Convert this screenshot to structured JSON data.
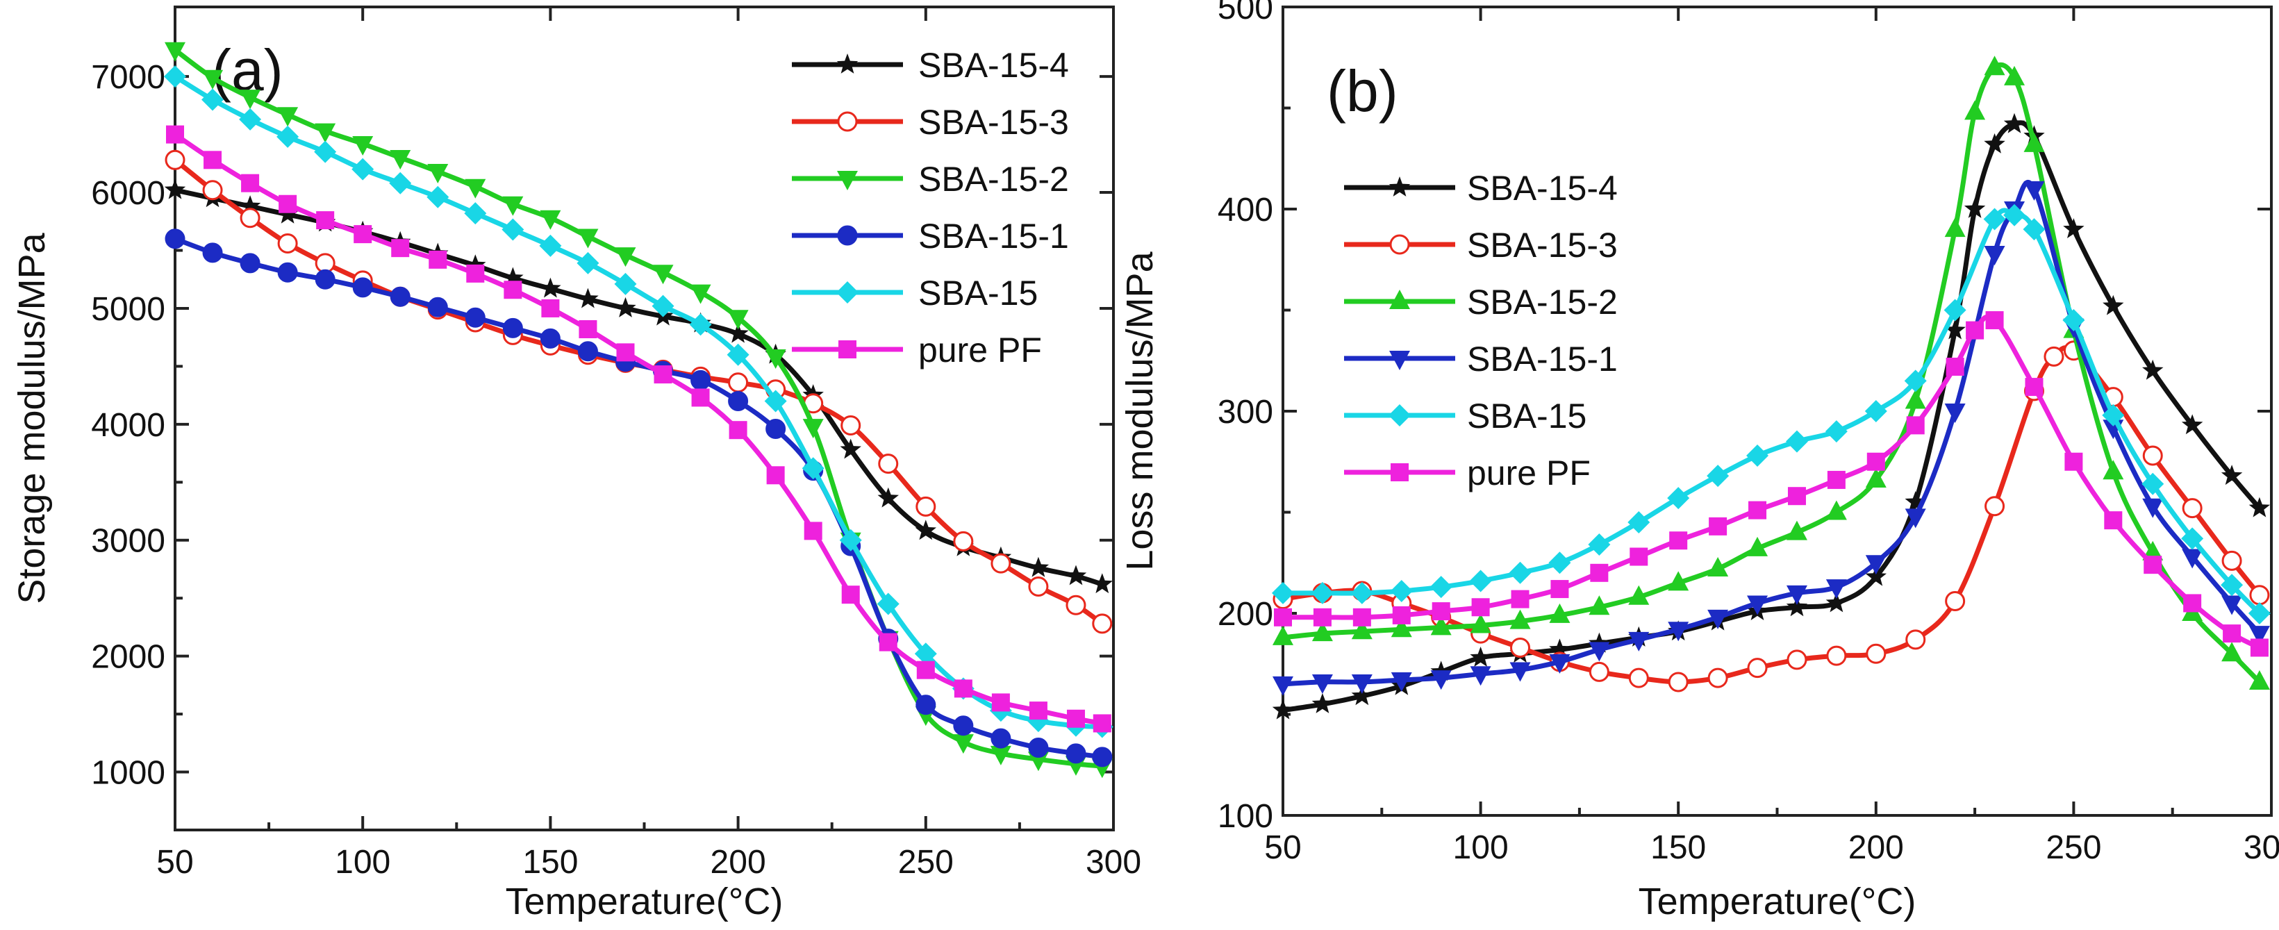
{
  "chart_data": [
    {
      "type": "line",
      "panel_label": "(a)",
      "xlabel": "Temperature(°C)",
      "ylabel": "Storage modulus/MPa",
      "xlim": [
        50,
        300
      ],
      "ylim": [
        500,
        7600
      ],
      "xticks": [
        "50",
        "100",
        "150",
        "200",
        "250",
        "300"
      ],
      "yticks": [
        "1000",
        "2000",
        "3000",
        "4000",
        "5000",
        "6000",
        "7000"
      ],
      "legend_position": "top-right",
      "series": [
        {
          "name": "SBA-15-4",
          "color": "#111111",
          "marker": "star",
          "x": [
            50,
            60,
            70,
            80,
            90,
            100,
            110,
            120,
            130,
            140,
            150,
            160,
            170,
            180,
            190,
            200,
            210,
            220,
            230,
            240,
            250,
            260,
            270,
            280,
            290,
            297
          ],
          "y": [
            6020,
            5950,
            5880,
            5810,
            5740,
            5660,
            5570,
            5470,
            5370,
            5260,
            5170,
            5080,
            5000,
            4930,
            4870,
            4780,
            4600,
            4250,
            3780,
            3360,
            3080,
            2940,
            2850,
            2760,
            2690,
            2620
          ]
        },
        {
          "name": "SBA-15-3",
          "color": "#e8281c",
          "marker": "circle-open",
          "x": [
            50,
            60,
            70,
            80,
            90,
            100,
            110,
            120,
            130,
            140,
            150,
            160,
            170,
            180,
            190,
            200,
            210,
            220,
            230,
            240,
            250,
            260,
            270,
            280,
            290,
            297
          ],
          "y": [
            6280,
            6020,
            5780,
            5560,
            5390,
            5240,
            5100,
            4990,
            4880,
            4770,
            4680,
            4600,
            4530,
            4470,
            4410,
            4360,
            4300,
            4180,
            3990,
            3660,
            3290,
            2990,
            2800,
            2600,
            2440,
            2280
          ]
        },
        {
          "name": "SBA-15-2",
          "color": "#22cc22",
          "marker": "triangle-down",
          "x": [
            50,
            60,
            70,
            80,
            90,
            100,
            110,
            120,
            130,
            140,
            150,
            160,
            170,
            180,
            190,
            200,
            210,
            220,
            230,
            240,
            250,
            260,
            270,
            280,
            290,
            297
          ],
          "y": [
            7230,
            6990,
            6820,
            6670,
            6530,
            6420,
            6300,
            6180,
            6050,
            5900,
            5780,
            5620,
            5460,
            5310,
            5140,
            4920,
            4580,
            3980,
            3000,
            2150,
            1500,
            1260,
            1160,
            1110,
            1070,
            1050
          ]
        },
        {
          "name": "SBA-15-1",
          "color": "#1c2bc4",
          "marker": "circle",
          "x": [
            50,
            60,
            70,
            80,
            90,
            100,
            110,
            120,
            130,
            140,
            150,
            160,
            170,
            180,
            190,
            200,
            210,
            220,
            230,
            240,
            250,
            260,
            270,
            280,
            290,
            297
          ],
          "y": [
            5600,
            5480,
            5390,
            5310,
            5250,
            5180,
            5100,
            5010,
            4920,
            4830,
            4740,
            4630,
            4540,
            4460,
            4380,
            4200,
            3960,
            3600,
            2950,
            2150,
            1580,
            1400,
            1290,
            1210,
            1160,
            1130
          ]
        },
        {
          "name": "SBA-15",
          "color": "#19d6e6",
          "marker": "diamond",
          "x": [
            50,
            60,
            70,
            80,
            90,
            100,
            110,
            120,
            130,
            140,
            150,
            160,
            170,
            180,
            190,
            200,
            210,
            220,
            230,
            240,
            250,
            260,
            270,
            280,
            290,
            297
          ],
          "y": [
            7000,
            6800,
            6630,
            6480,
            6350,
            6200,
            6080,
            5960,
            5820,
            5680,
            5540,
            5390,
            5210,
            5020,
            4860,
            4600,
            4200,
            3620,
            3000,
            2450,
            2020,
            1720,
            1530,
            1440,
            1400,
            1390
          ]
        },
        {
          "name": "pure PF",
          "color": "#ee22dd",
          "marker": "square",
          "x": [
            50,
            60,
            70,
            80,
            90,
            100,
            110,
            120,
            130,
            140,
            150,
            160,
            170,
            180,
            190,
            200,
            210,
            220,
            230,
            240,
            250,
            260,
            270,
            280,
            290,
            297
          ],
          "y": [
            6500,
            6280,
            6080,
            5900,
            5760,
            5640,
            5520,
            5420,
            5300,
            5160,
            5000,
            4820,
            4620,
            4430,
            4230,
            3950,
            3560,
            3080,
            2530,
            2120,
            1880,
            1720,
            1600,
            1530,
            1460,
            1420
          ]
        }
      ]
    },
    {
      "type": "line",
      "panel_label": "(b)",
      "xlabel": "Temperature(°C)",
      "ylabel": "Loss modulus/MPa",
      "xlim": [
        50,
        300
      ],
      "ylim": [
        100,
        500
      ],
      "xticks": [
        "50",
        "100",
        "150",
        "200",
        "250",
        "300"
      ],
      "yticks": [
        "100",
        "200",
        "300",
        "400",
        "500"
      ],
      "legend_position": "left",
      "series": [
        {
          "name": "SBA-15-4",
          "color": "#111111",
          "marker": "star",
          "x": [
            50,
            60,
            70,
            80,
            90,
            100,
            110,
            120,
            130,
            140,
            150,
            160,
            170,
            180,
            190,
            200,
            210,
            220,
            225,
            230,
            235,
            240,
            250,
            260,
            270,
            280,
            290,
            297
          ],
          "y": [
            152,
            155,
            159,
            164,
            171,
            178,
            180,
            182,
            185,
            188,
            191,
            196,
            201,
            203,
            205,
            218,
            255,
            340,
            400,
            432,
            442,
            436,
            390,
            352,
            320,
            293,
            268,
            252
          ]
        },
        {
          "name": "SBA-15-3",
          "color": "#e8281c",
          "marker": "circle-open",
          "x": [
            50,
            60,
            70,
            80,
            90,
            100,
            110,
            120,
            130,
            140,
            150,
            160,
            170,
            180,
            190,
            200,
            210,
            220,
            230,
            240,
            245,
            250,
            260,
            270,
            280,
            290,
            297
          ],
          "y": [
            207,
            210,
            211,
            205,
            198,
            190,
            183,
            176,
            171,
            168,
            166,
            168,
            173,
            177,
            179,
            180,
            187,
            206,
            253,
            310,
            327,
            330,
            307,
            278,
            252,
            226,
            209
          ]
        },
        {
          "name": "SBA-15-2",
          "color": "#22cc22",
          "marker": "triangle-up",
          "x": [
            50,
            60,
            70,
            80,
            90,
            100,
            110,
            120,
            130,
            140,
            150,
            160,
            170,
            180,
            190,
            200,
            210,
            220,
            225,
            230,
            235,
            240,
            250,
            260,
            270,
            280,
            290,
            297
          ],
          "y": [
            188,
            190,
            191,
            192,
            193,
            194,
            196,
            199,
            203,
            208,
            215,
            222,
            232,
            240,
            250,
            266,
            305,
            390,
            448,
            470,
            465,
            432,
            340,
            270,
            230,
            200,
            180,
            166
          ]
        },
        {
          "name": "SBA-15-1",
          "color": "#1c2bc4",
          "marker": "triangle-down",
          "x": [
            50,
            60,
            70,
            80,
            90,
            100,
            110,
            120,
            130,
            140,
            150,
            160,
            170,
            180,
            190,
            200,
            210,
            220,
            230,
            235,
            240,
            250,
            260,
            270,
            280,
            290,
            297
          ],
          "y": [
            165,
            166,
            166,
            167,
            168,
            170,
            172,
            176,
            182,
            187,
            192,
            198,
            205,
            210,
            213,
            225,
            248,
            300,
            378,
            400,
            410,
            342,
            292,
            253,
            228,
            205,
            190
          ]
        },
        {
          "name": "SBA-15",
          "color": "#19d6e6",
          "marker": "diamond",
          "x": [
            50,
            60,
            70,
            80,
            90,
            100,
            110,
            120,
            130,
            140,
            150,
            160,
            170,
            180,
            190,
            200,
            210,
            220,
            230,
            235,
            240,
            250,
            260,
            270,
            280,
            290,
            297
          ],
          "y": [
            210,
            210,
            210,
            211,
            213,
            216,
            220,
            225,
            234,
            245,
            257,
            268,
            278,
            285,
            290,
            300,
            315,
            350,
            395,
            397,
            390,
            345,
            298,
            264,
            237,
            214,
            200
          ]
        },
        {
          "name": "pure PF",
          "color": "#ee22dd",
          "marker": "square",
          "x": [
            50,
            60,
            70,
            80,
            90,
            100,
            110,
            120,
            130,
            140,
            150,
            160,
            170,
            180,
            190,
            200,
            210,
            220,
            225,
            230,
            240,
            250,
            260,
            270,
            280,
            290,
            297
          ],
          "y": [
            198,
            198,
            198,
            199,
            201,
            203,
            207,
            212,
            220,
            228,
            236,
            243,
            251,
            258,
            266,
            275,
            293,
            322,
            340,
            345,
            312,
            275,
            246,
            224,
            205,
            190,
            183
          ]
        }
      ]
    }
  ]
}
